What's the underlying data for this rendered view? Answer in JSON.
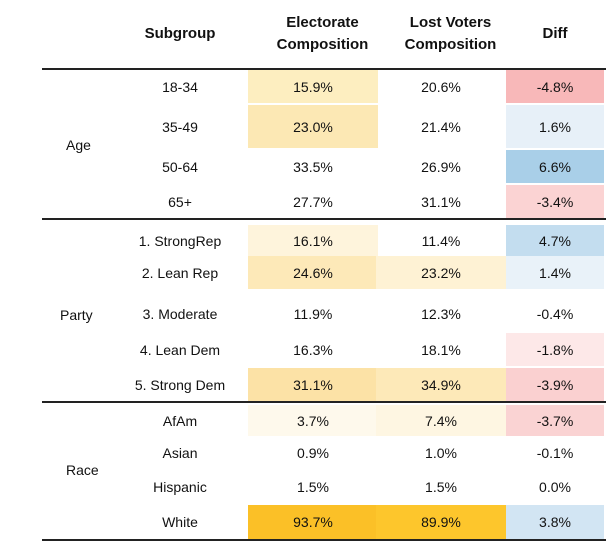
{
  "header": {
    "subgroup": "Subgroup",
    "electorate": "Electorate\nComposition",
    "lost": "Lost Voters\nComposition",
    "diff": "Diff"
  },
  "groups": [
    {
      "label": "Age",
      "rows": [
        {
          "subgroup": "18-34",
          "electorate": "15.9%",
          "lost": "20.6%",
          "diff": "-4.8%",
          "ecolor": "#fdeec0",
          "lcolor": "",
          "dcolor": "#f8b8b9"
        },
        {
          "subgroup": "35-49",
          "electorate": "23.0%",
          "lost": "21.4%",
          "diff": "1.6%",
          "ecolor": "#fce8b4",
          "lcolor": "",
          "dcolor": "#e7f0f8"
        },
        {
          "subgroup": "50-64",
          "electorate": "33.5%",
          "lost": "26.9%",
          "diff": "6.6%",
          "ecolor": "",
          "lcolor": "",
          "dcolor": "#a9cfe8"
        },
        {
          "subgroup": "65+",
          "electorate": "27.7%",
          "lost": "31.1%",
          "diff": "-3.4%",
          "ecolor": "",
          "lcolor": "",
          "dcolor": "#fbd3d3"
        }
      ]
    },
    {
      "label": "Party",
      "rows": [
        {
          "subgroup": "1. StrongRep",
          "electorate": "16.1%",
          "lost": "11.4%",
          "diff": "4.7%",
          "ecolor": "#fef4dc",
          "lcolor": "",
          "dcolor": "#c3ddef"
        },
        {
          "subgroup": "2. Lean Rep",
          "electorate": "24.6%",
          "lost": "23.2%",
          "diff": "1.4%",
          "ecolor": "#fde9b8",
          "lcolor": "#fef2d4",
          "dcolor": "#e9f2f9"
        },
        {
          "subgroup": "3. Moderate",
          "electorate": "11.9%",
          "lost": "12.3%",
          "diff": "-0.4%",
          "ecolor": "",
          "lcolor": "",
          "dcolor": ""
        },
        {
          "subgroup": "4. Lean Dem",
          "electorate": "16.3%",
          "lost": "18.1%",
          "diff": "-1.8%",
          "ecolor": "",
          "lcolor": "",
          "dcolor": "#fde8e8"
        },
        {
          "subgroup": "5. Strong Dem",
          "electorate": "31.1%",
          "lost": "34.9%",
          "diff": "-3.9%",
          "ecolor": "#fce2a6",
          "lcolor": "#fde9b8",
          "dcolor": "#fad0d0"
        }
      ]
    },
    {
      "label": "Race",
      "rows": [
        {
          "subgroup": "AfAm",
          "electorate": "3.7%",
          "lost": "7.4%",
          "diff": "-3.7%",
          "ecolor": "#fef9ec",
          "lcolor": "#fef6e2",
          "dcolor": "#fad3d3"
        },
        {
          "subgroup": "Asian",
          "electorate": "0.9%",
          "lost": "1.0%",
          "diff": "-0.1%",
          "ecolor": "",
          "lcolor": "",
          "dcolor": ""
        },
        {
          "subgroup": "Hispanic",
          "electorate": "1.5%",
          "lost": "1.5%",
          "diff": "0.0%",
          "ecolor": "",
          "lcolor": "",
          "dcolor": ""
        },
        {
          "subgroup": "White",
          "electorate": "93.7%",
          "lost": "89.9%",
          "diff": "3.8%",
          "ecolor": "#fbc027",
          "lcolor": "#fdc62c",
          "dcolor": "#d2e5f3"
        }
      ]
    }
  ]
}
